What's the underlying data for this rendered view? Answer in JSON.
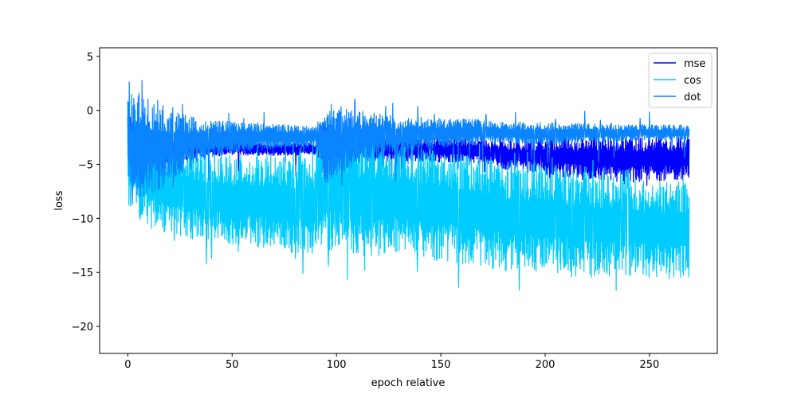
{
  "chart_data": {
    "type": "line",
    "title": "",
    "xlabel": "epoch relative",
    "ylabel": "loss",
    "xlim": [
      -13.5,
      282.5
    ],
    "ylim": [
      -22.5,
      5.8
    ],
    "xticks": [
      0,
      50,
      100,
      150,
      200,
      250
    ],
    "yticks": [
      -20,
      -15,
      -10,
      -5,
      0,
      5
    ],
    "grid": false,
    "legend_position": "top-right",
    "series": [
      {
        "name": "mse",
        "color": "#0000ff",
        "x": [
          0,
          5,
          10,
          20,
          30,
          50,
          70,
          90,
          95,
          110,
          130,
          150,
          170,
          180,
          200,
          220,
          240,
          260,
          269
        ],
        "upper": [
          0,
          -1,
          -1.5,
          -2,
          -2.5,
          -2.8,
          -3,
          -3,
          -1.5,
          -2,
          -2.5,
          -2.5,
          -2.5,
          -2.8,
          -2.5,
          -2.3,
          -2.3,
          -2.3,
          -2.3
        ],
        "lower": [
          -6,
          -6,
          -5.5,
          -5,
          -4.5,
          -4.2,
          -4.2,
          -4.2,
          -5,
          -4.8,
          -4.7,
          -4.8,
          -5,
          -5.5,
          -6,
          -6.5,
          -6.7,
          -6.5,
          -6.5
        ]
      },
      {
        "name": "cos",
        "color": "#00ccff",
        "x": [
          0,
          5,
          10,
          20,
          30,
          50,
          70,
          90,
          95,
          110,
          130,
          150,
          170,
          180,
          200,
          220,
          240,
          260,
          269
        ],
        "upper": [
          0,
          -1,
          -2,
          -3,
          -3.5,
          -4,
          -4,
          -4,
          -2,
          -2.5,
          -3,
          -3.5,
          -4,
          -4.5,
          -5,
          -5.5,
          -6,
          -6.5,
          -6.5
        ],
        "lower": [
          -9,
          -10,
          -11,
          -11.5,
          -12,
          -12.5,
          -13,
          -13.5,
          -13,
          -13.5,
          -13.5,
          -14,
          -14.5,
          -15,
          -15,
          -15.5,
          -15.5,
          -15.5,
          -15.5
        ]
      },
      {
        "name": "dot",
        "color": "#0a84ff",
        "x": [
          0,
          5,
          10,
          20,
          30,
          50,
          70,
          90,
          95,
          110,
          130,
          150,
          170,
          180,
          200,
          220,
          240,
          260,
          269
        ],
        "upper": [
          1.5,
          1.8,
          1.5,
          0.5,
          -0.5,
          -1,
          -1.2,
          -1.5,
          0.8,
          0,
          -0.5,
          -0.7,
          -0.8,
          -1,
          -1.1,
          -1.2,
          -1.3,
          -1.3,
          -1.3
        ],
        "lower": [
          -7,
          -8,
          -8,
          -7,
          -5,
          -4,
          -3.6,
          -3.4,
          -7,
          -5,
          -4,
          -3.5,
          -3.2,
          -3.2,
          -3.2,
          -3,
          -2.9,
          -2.8,
          -2.8
        ]
      }
    ]
  }
}
